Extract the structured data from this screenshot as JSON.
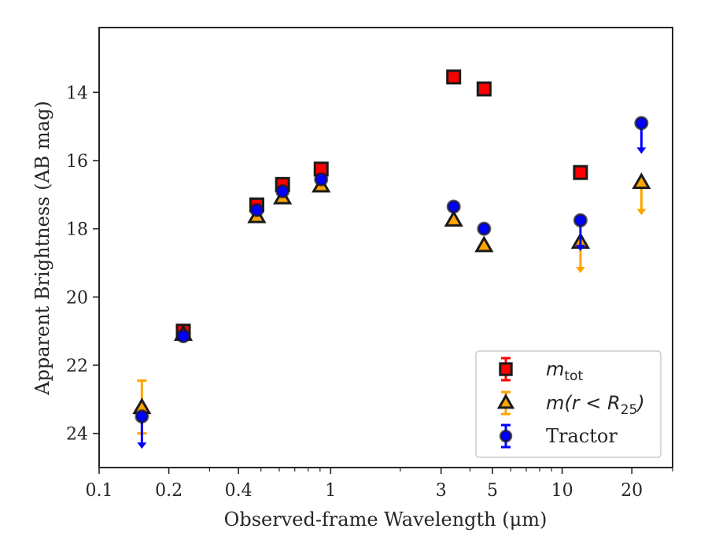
{
  "chart_data": {
    "type": "scatter",
    "xlabel": "Observed-frame Wavelength (μm)",
    "ylabel": "Apparent Brightness (AB mag)",
    "x_scale": "log",
    "xlim": [
      0.1,
      30
    ],
    "ylim": [
      25,
      12.1
    ],
    "y_inverted": true,
    "x_ticks": [
      {
        "value": 0.1,
        "label": "0.1"
      },
      {
        "value": 0.2,
        "label": "0.2"
      },
      {
        "value": 0.4,
        "label": "0.4"
      },
      {
        "value": 1,
        "label": "1"
      },
      {
        "value": 3,
        "label": "3"
      },
      {
        "value": 5,
        "label": "5"
      },
      {
        "value": 10,
        "label": "10"
      },
      {
        "value": 20,
        "label": "20"
      }
    ],
    "y_ticks": [
      {
        "value": 14,
        "label": "14"
      },
      {
        "value": 16,
        "label": "16"
      },
      {
        "value": 18,
        "label": "18"
      },
      {
        "value": 20,
        "label": "20"
      },
      {
        "value": 22,
        "label": "22"
      },
      {
        "value": 24,
        "label": "24"
      }
    ],
    "grid": false,
    "legend_position": "lower-right",
    "series": [
      {
        "name": "m_tot",
        "legend": {
          "base": "m",
          "sub": "tot"
        },
        "marker": "square",
        "color": "#ff0000",
        "errorbar_color": "#ff0000",
        "points": [
          {
            "x": 0.231,
            "y": 21.0
          },
          {
            "x": 0.48,
            "y": 17.3
          },
          {
            "x": 0.62,
            "y": 16.7
          },
          {
            "x": 0.91,
            "y": 16.25
          },
          {
            "x": 3.4,
            "y": 13.55
          },
          {
            "x": 4.6,
            "y": 13.9
          },
          {
            "x": 12.0,
            "y": 16.35
          }
        ]
      },
      {
        "name": "m(r < R_25)",
        "legend": {
          "base": "m(r < R",
          "sub": "25",
          "tail": ")"
        },
        "marker": "triangle",
        "color": "#ffa500",
        "errorbar_color": "#ffa500",
        "points": [
          {
            "x": 0.153,
            "y": 23.25,
            "err_low": 22.45,
            "err_high": 24.0
          },
          {
            "x": 0.231,
            "y": 21.1
          },
          {
            "x": 0.48,
            "y": 17.65
          },
          {
            "x": 0.62,
            "y": 17.1
          },
          {
            "x": 0.91,
            "y": 16.75
          },
          {
            "x": 3.4,
            "y": 17.75
          },
          {
            "x": 4.6,
            "y": 18.5
          },
          {
            "x": 12.0,
            "y": 18.4,
            "upper_limit_to": 19.3
          },
          {
            "x": 22.0,
            "y": 16.65,
            "upper_limit_to": 17.6
          }
        ]
      },
      {
        "name": "Tractor",
        "legend": {
          "base": "Tractor"
        },
        "marker": "circle",
        "color": "#0000ff",
        "errorbar_color": "#0000ff",
        "points": [
          {
            "x": 0.153,
            "y": 23.5,
            "upper_limit_to": 24.45
          },
          {
            "x": 0.231,
            "y": 21.15
          },
          {
            "x": 0.48,
            "y": 17.45
          },
          {
            "x": 0.62,
            "y": 16.9
          },
          {
            "x": 0.91,
            "y": 16.55
          },
          {
            "x": 3.4,
            "y": 17.35
          },
          {
            "x": 4.6,
            "y": 18.0
          },
          {
            "x": 12.0,
            "y": 17.75,
            "upper_limit_to": 18.65
          },
          {
            "x": 22.0,
            "y": 14.9,
            "upper_limit_to": 15.8
          }
        ]
      }
    ]
  }
}
